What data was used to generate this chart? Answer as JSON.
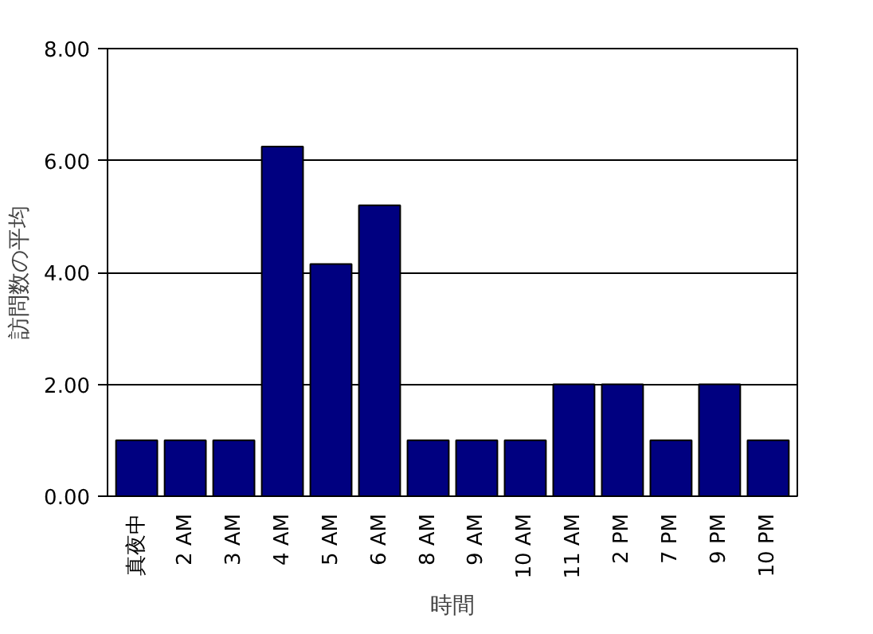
{
  "chart_data": {
    "type": "bar",
    "xlabel": "時間",
    "ylabel": "訪問数の平均",
    "categories": [
      "真夜中",
      "2 AM",
      "3 AM",
      "4 AM",
      "5 AM",
      "6 AM",
      "8 AM",
      "9 AM",
      "10 AM",
      "11 AM",
      "2 PM",
      "7 PM",
      "9 PM",
      "10 PM"
    ],
    "values": [
      1,
      1,
      1,
      6.25,
      4.15,
      5.2,
      1,
      1,
      1,
      2,
      2,
      1,
      2,
      1
    ],
    "color": "#000080",
    "ylim": [
      0,
      8
    ],
    "yticks": [
      {
        "value": 0,
        "label": "0.00"
      },
      {
        "value": 2,
        "label": "2.00"
      },
      {
        "value": 4,
        "label": "4.00"
      },
      {
        "value": 6,
        "label": "6.00"
      },
      {
        "value": 8,
        "label": "8.00"
      }
    ],
    "grid": "y"
  }
}
